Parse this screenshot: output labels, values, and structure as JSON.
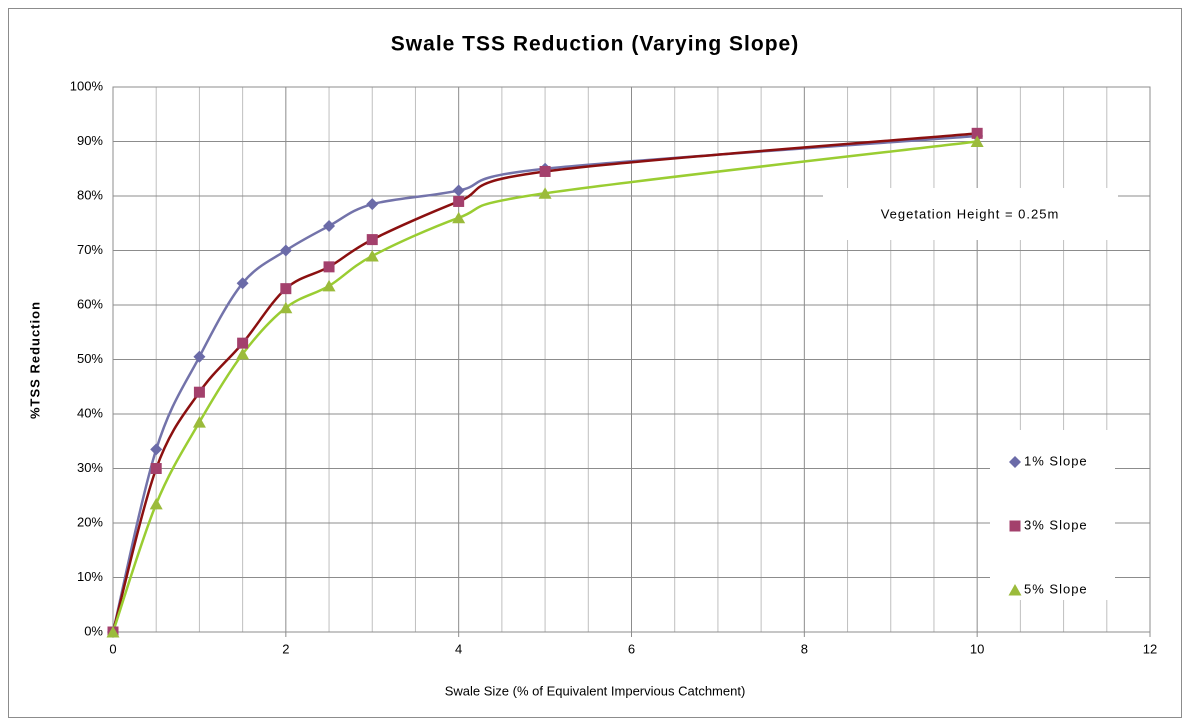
{
  "chart_data": {
    "type": "scatter",
    "title": "Swale TSS Reduction (Varying Slope)",
    "x_label": "Swale Size (% of Equivalent Impervious Catchment)",
    "y_label": "%TSS Reduction",
    "annotation": "Vegetation Height =  0.25m",
    "x": [
      0,
      0.5,
      1,
      1.5,
      2,
      2.5,
      3,
      4,
      5,
      10
    ],
    "series": [
      {
        "name": "1% Slope",
        "color": "#6b6ba8",
        "trendline_color": "#7373aa",
        "marker": "diamond",
        "values": [
          0,
          33.5,
          50.5,
          64,
          70,
          74.5,
          78.5,
          81,
          85,
          91
        ]
      },
      {
        "name": "3% Slope",
        "color": "#a3406c",
        "trendline_color": "#8b1010",
        "marker": "square",
        "values": [
          0,
          30,
          44,
          53,
          63,
          67,
          72,
          79,
          84.5,
          91.5
        ]
      },
      {
        "name": "5% Slope",
        "color": "#9bbb3b",
        "trendline_color": "#9acd32",
        "marker": "triangle",
        "values": [
          0,
          23.5,
          38.5,
          51,
          59.5,
          63.5,
          69,
          76,
          80.5,
          90
        ]
      }
    ],
    "xlim": [
      0,
      12
    ],
    "xticks": [
      0,
      2,
      4,
      6,
      8,
      10,
      12
    ],
    "xminorticks": [
      0.5,
      1,
      1.5,
      2.5,
      3,
      3.5,
      4.5,
      5,
      5.5,
      6.5,
      7,
      7.5,
      8.5,
      9,
      9.5,
      10.5,
      11,
      11.5
    ],
    "ylim": [
      0,
      100
    ],
    "yticks": [
      {
        "value": 0,
        "label": "0%"
      },
      {
        "value": 10,
        "label": "10%"
      },
      {
        "value": 20,
        "label": "20%"
      },
      {
        "value": 30,
        "label": "30%"
      },
      {
        "value": 40,
        "label": "40%"
      },
      {
        "value": 50,
        "label": "50%"
      },
      {
        "value": 60,
        "label": "60%"
      },
      {
        "value": 70,
        "label": "70%"
      },
      {
        "value": 80,
        "label": "80%"
      },
      {
        "value": 90,
        "label": "90%"
      },
      {
        "value": 100,
        "label": "100%"
      }
    ],
    "grid": true,
    "legend": "right"
  }
}
